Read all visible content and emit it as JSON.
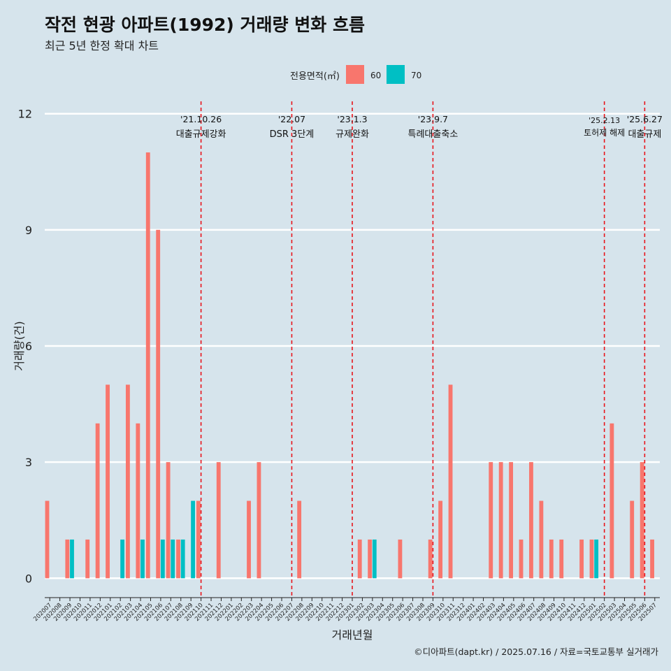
{
  "title": "작전 현광 아파트(1992) 거래량 변화 흐름",
  "subtitle": "최근 5년 한정 확대 차트",
  "caption": "©디아파트(dapt.kr) / 2025.07.16 / 자료=국토교통부 실거래가",
  "colors": {
    "60": "#f8766d",
    "70": "#00bfc4",
    "event_line": "#e8141b",
    "background": "#d6e4ec",
    "grid": "#ffffff"
  },
  "chart_data": {
    "type": "bar",
    "xlabel": "거래년월",
    "ylabel": "거래량(건)",
    "ylim": [
      -0.5,
      12.5
    ],
    "yticks": [
      0,
      3,
      6,
      9,
      12
    ],
    "legend": {
      "title": "전용면적(㎡)",
      "position": "top",
      "entries": [
        "60",
        "70"
      ]
    },
    "categories": [
      "202007",
      "202008",
      "202009",
      "202010",
      "202011",
      "202012",
      "202101",
      "202102",
      "202103",
      "202104",
      "202105",
      "202106",
      "202107",
      "202108",
      "202109",
      "202110",
      "202111",
      "202112",
      "202201",
      "202202",
      "202203",
      "202204",
      "202205",
      "202206",
      "202207",
      "202208",
      "202209",
      "202210",
      "202211",
      "202212",
      "202301",
      "202302",
      "202303",
      "202304",
      "202305",
      "202306",
      "202307",
      "202308",
      "202309",
      "202310",
      "202311",
      "202312",
      "202401",
      "202402",
      "202403",
      "202404",
      "202405",
      "202406",
      "202407",
      "202408",
      "202409",
      "202410",
      "202411",
      "202412",
      "202501",
      "202502",
      "202503",
      "202504",
      "202505",
      "202506",
      "202507"
    ],
    "series": [
      {
        "name": "60",
        "values": [
          2,
          0,
          1,
          0,
          1,
          4,
          5,
          0,
          5,
          4,
          11,
          9,
          3,
          1,
          0,
          2,
          0,
          3,
          0,
          0,
          2,
          3,
          0,
          0,
          0,
          2,
          0,
          0,
          0,
          0,
          0,
          1,
          1,
          0,
          0,
          1,
          0,
          0,
          1,
          2,
          5,
          0,
          0,
          0,
          3,
          3,
          3,
          1,
          3,
          2,
          1,
          1,
          0,
          1,
          1,
          0,
          4,
          0,
          2,
          3,
          1
        ]
      },
      {
        "name": "70",
        "values": [
          0,
          0,
          1,
          0,
          0,
          0,
          0,
          1,
          0,
          1,
          0,
          1,
          1,
          1,
          2,
          0,
          0,
          0,
          0,
          0,
          0,
          0,
          0,
          0,
          0,
          0,
          0,
          0,
          0,
          0,
          0,
          0,
          1,
          0,
          0,
          0,
          0,
          0,
          0,
          0,
          0,
          0,
          0,
          0,
          0,
          0,
          0,
          0,
          0,
          0,
          0,
          0,
          0,
          0,
          1,
          0,
          0,
          0,
          0,
          0,
          0
        ]
      }
    ],
    "events": [
      {
        "date": "'21.10.26",
        "label": "대출규제강화",
        "x": "202110"
      },
      {
        "date": "'22.07",
        "label": "DSR 3단계",
        "x": "202207"
      },
      {
        "date": "'23.1.3",
        "label": "규제완화",
        "x": "202301"
      },
      {
        "date": "'23.9.7",
        "label": "특례대출축소",
        "x": "202309"
      },
      {
        "date": "'25.2.13",
        "label": "토허제 해제",
        "x": "202502"
      },
      {
        "date": "'25.6.27",
        "label": "대출규제",
        "x": "202506"
      }
    ]
  }
}
